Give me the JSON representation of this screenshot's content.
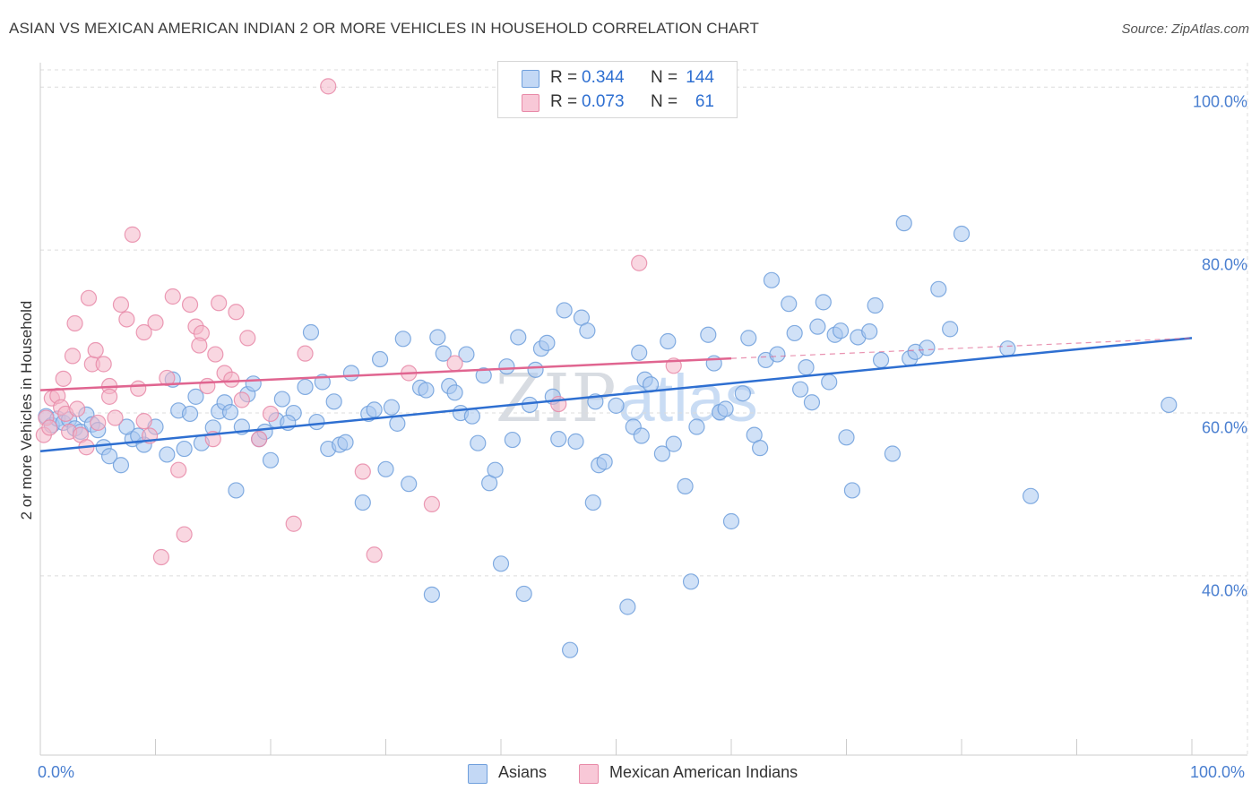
{
  "title": "ASIAN VS MEXICAN AMERICAN INDIAN 2 OR MORE VEHICLES IN HOUSEHOLD CORRELATION CHART",
  "source": "Source: ZipAtlas.com",
  "watermark": {
    "zip": "ZIP",
    "atlas": "atlas"
  },
  "colors": {
    "asian_fill": "#a9c8f0",
    "asian_stroke": "#6f9fdc",
    "asian_line": "#2e6fd1",
    "mexican_fill": "#f4b6c9",
    "mexican_stroke": "#e88aa8",
    "mexican_line": "#e06590",
    "stat_value": "#2e6fd1",
    "grid": "#dcdcdc",
    "axis": "#cccccc"
  },
  "stats": [
    {
      "series": "Asians",
      "r_label": "R =",
      "r_value": "0.344",
      "n_label": "N =",
      "n_value": "144"
    },
    {
      "series": "Mexican American Indians",
      "r_label": "R =",
      "r_value": "0.073",
      "n_label": "N =",
      "n_value": "61"
    }
  ],
  "legend": [
    {
      "label": "Asians",
      "icon": "blue-square"
    },
    {
      "label": "Mexican American Indians",
      "icon": "pink-square"
    }
  ],
  "chart_data": {
    "type": "scatter",
    "title": "ASIAN VS MEXICAN AMERICAN INDIAN 2 OR MORE VEHICLES IN HOUSEHOLD CORRELATION CHART",
    "xlabel": "",
    "ylabel": "2 or more Vehicles in Household",
    "xlim": [
      0,
      100
    ],
    "ylim": [
      18,
      103
    ],
    "x_ticks": [
      "0.0%",
      "100.0%"
    ],
    "y_ticks": [
      {
        "value": 100,
        "label": "100.0%"
      },
      {
        "value": 80,
        "label": "80.0%"
      },
      {
        "value": 60,
        "label": "60.0%"
      },
      {
        "value": 40,
        "label": "40.0%"
      }
    ],
    "grid": true,
    "legend_position": "bottom-center",
    "series": [
      {
        "name": "Asians",
        "trend": {
          "x": [
            0,
            100
          ],
          "y": [
            55.3,
            69.2
          ]
        },
        "points": [
          [
            0.5,
            59.6
          ],
          [
            1,
            58.5
          ],
          [
            1.5,
            59.3
          ],
          [
            2,
            58.8
          ],
          [
            2.5,
            59.2
          ],
          [
            3,
            58.1
          ],
          [
            3.5,
            57.7
          ],
          [
            4,
            59.8
          ],
          [
            4.5,
            58.6
          ],
          [
            5,
            57.9
          ],
          [
            5.5,
            55.8
          ],
          [
            6,
            54.7
          ],
          [
            7,
            53.6
          ],
          [
            8,
            56.8
          ],
          [
            9,
            56.1
          ],
          [
            10,
            58.3
          ],
          [
            11,
            54.9
          ],
          [
            11.5,
            64.1
          ],
          [
            12,
            60.3
          ],
          [
            13,
            59.9
          ],
          [
            13.5,
            62.0
          ],
          [
            14,
            56.3
          ],
          [
            15,
            58.2
          ],
          [
            15.5,
            60.2
          ],
          [
            16,
            61.3
          ],
          [
            17,
            50.5
          ],
          [
            17.5,
            58.3
          ],
          [
            18,
            62.3
          ],
          [
            19,
            56.8
          ],
          [
            20,
            54.2
          ],
          [
            20.5,
            59.1
          ],
          [
            21,
            61.7
          ],
          [
            22,
            60.0
          ],
          [
            23,
            63.2
          ],
          [
            23.5,
            69.9
          ],
          [
            24,
            58.9
          ],
          [
            25,
            55.6
          ],
          [
            25.5,
            61.4
          ],
          [
            26,
            56.1
          ],
          [
            27,
            64.9
          ],
          [
            28,
            49.0
          ],
          [
            28.5,
            59.9
          ],
          [
            29,
            60.4
          ],
          [
            30,
            53.1
          ],
          [
            31,
            58.7
          ],
          [
            31.5,
            69.1
          ],
          [
            32,
            51.3
          ],
          [
            33,
            63.1
          ],
          [
            33.5,
            62.8
          ],
          [
            34,
            37.7
          ],
          [
            35,
            67.3
          ],
          [
            35.5,
            63.3
          ],
          [
            36,
            62.5
          ],
          [
            37,
            67.2
          ],
          [
            38,
            56.3
          ],
          [
            39,
            51.4
          ],
          [
            39.5,
            53.0
          ],
          [
            40,
            41.5
          ],
          [
            40.5,
            65.7
          ],
          [
            41,
            56.7
          ],
          [
            42,
            37.8
          ],
          [
            42.5,
            61.0
          ],
          [
            43,
            65.3
          ],
          [
            43.5,
            67.9
          ],
          [
            44,
            68.6
          ],
          [
            45,
            56.8
          ],
          [
            45.5,
            72.6
          ],
          [
            46,
            30.9
          ],
          [
            46.5,
            56.5
          ],
          [
            47,
            71.7
          ],
          [
            47.5,
            70.1
          ],
          [
            48,
            49.0
          ],
          [
            48.5,
            53.6
          ],
          [
            49,
            54.0
          ],
          [
            50,
            60.9
          ],
          [
            51,
            36.2
          ],
          [
            51.5,
            58.3
          ],
          [
            52,
            67.4
          ],
          [
            52.5,
            64.1
          ],
          [
            53,
            63.5
          ],
          [
            54,
            55.0
          ],
          [
            54.5,
            68.8
          ],
          [
            55,
            56.2
          ],
          [
            56,
            51.0
          ],
          [
            56.5,
            39.3
          ],
          [
            57,
            58.3
          ],
          [
            58,
            69.6
          ],
          [
            58.5,
            66.1
          ],
          [
            59,
            60.1
          ],
          [
            59.5,
            60.5
          ],
          [
            60,
            46.7
          ],
          [
            61,
            62.4
          ],
          [
            61.5,
            69.2
          ],
          [
            62,
            57.3
          ],
          [
            62.5,
            55.7
          ],
          [
            63,
            66.5
          ],
          [
            63.5,
            76.3
          ],
          [
            64,
            67.2
          ],
          [
            65,
            73.4
          ],
          [
            65.5,
            69.8
          ],
          [
            66,
            62.9
          ],
          [
            66.5,
            65.6
          ],
          [
            67,
            61.3
          ],
          [
            67.5,
            70.6
          ],
          [
            68,
            73.6
          ],
          [
            68.5,
            63.8
          ],
          [
            69,
            69.6
          ],
          [
            69.5,
            70.1
          ],
          [
            70,
            57.0
          ],
          [
            70.5,
            50.5
          ],
          [
            71,
            69.3
          ],
          [
            72,
            70.0
          ],
          [
            72.5,
            73.2
          ],
          [
            73,
            66.5
          ],
          [
            74,
            55.0
          ],
          [
            75,
            83.3
          ],
          [
            75.5,
            66.7
          ],
          [
            76,
            67.5
          ],
          [
            77,
            68.0
          ],
          [
            78,
            75.2
          ],
          [
            79,
            70.3
          ],
          [
            80,
            82.0
          ],
          [
            84,
            67.9
          ],
          [
            86,
            49.8
          ],
          [
            98,
            61.0
          ],
          [
            7.5,
            58.3
          ],
          [
            8.5,
            57.2
          ],
          [
            12.5,
            55.6
          ],
          [
            16.5,
            60.1
          ],
          [
            18.5,
            63.6
          ],
          [
            19.5,
            57.7
          ],
          [
            21.5,
            58.8
          ],
          [
            24.5,
            63.8
          ],
          [
            26.5,
            56.4
          ],
          [
            29.5,
            66.6
          ],
          [
            30.5,
            60.7
          ],
          [
            34.5,
            69.3
          ],
          [
            36.5,
            60.0
          ],
          [
            37.5,
            59.6
          ],
          [
            38.5,
            64.6
          ],
          [
            41.5,
            69.3
          ],
          [
            44.5,
            62.0
          ],
          [
            48.2,
            61.4
          ],
          [
            52.2,
            57.2
          ]
        ]
      },
      {
        "name": "Mexican American Indians",
        "trend": {
          "x": [
            0,
            60
          ],
          "y": [
            62.8,
            66.7
          ]
        },
        "trend_extension": {
          "x": [
            60,
            100
          ],
          "y": [
            66.7,
            69.2
          ]
        },
        "points": [
          [
            0.3,
            57.3
          ],
          [
            0.5,
            59.4
          ],
          [
            0.8,
            58.2
          ],
          [
            1,
            61.8
          ],
          [
            1.5,
            62.1
          ],
          [
            1.8,
            60.7
          ],
          [
            2,
            64.2
          ],
          [
            2.2,
            59.9
          ],
          [
            2.5,
            57.7
          ],
          [
            2.8,
            67.0
          ],
          [
            3,
            71.0
          ],
          [
            3.5,
            57.3
          ],
          [
            4,
            55.8
          ],
          [
            4.2,
            74.1
          ],
          [
            4.5,
            66.0
          ],
          [
            4.8,
            67.7
          ],
          [
            5,
            58.8
          ],
          [
            5.5,
            66.0
          ],
          [
            6,
            63.3
          ],
          [
            6.5,
            59.4
          ],
          [
            7,
            73.3
          ],
          [
            7.5,
            71.5
          ],
          [
            8,
            81.9
          ],
          [
            8.5,
            63.0
          ],
          [
            9,
            69.9
          ],
          [
            9.5,
            57.2
          ],
          [
            10,
            71.1
          ],
          [
            10.5,
            42.3
          ],
          [
            11,
            64.3
          ],
          [
            11.5,
            74.3
          ],
          [
            12,
            53.0
          ],
          [
            12.5,
            45.1
          ],
          [
            13,
            73.3
          ],
          [
            13.5,
            70.6
          ],
          [
            14,
            69.8
          ],
          [
            14.5,
            63.3
          ],
          [
            15,
            56.8
          ],
          [
            15.5,
            73.5
          ],
          [
            16,
            64.9
          ],
          [
            17,
            72.4
          ],
          [
            17.5,
            61.6
          ],
          [
            18,
            69.2
          ],
          [
            20,
            59.9
          ],
          [
            22,
            46.4
          ],
          [
            23,
            67.3
          ],
          [
            25,
            100.1
          ],
          [
            28,
            52.8
          ],
          [
            29,
            42.6
          ],
          [
            32,
            64.9
          ],
          [
            34,
            48.8
          ],
          [
            36,
            66.1
          ],
          [
            45,
            61.1
          ],
          [
            52,
            78.4
          ],
          [
            55,
            65.8
          ],
          [
            6,
            62.0
          ],
          [
            9,
            59.0
          ],
          [
            13.8,
            68.3
          ],
          [
            15.2,
            67.2
          ],
          [
            16.6,
            64.1
          ],
          [
            19,
            56.8
          ],
          [
            3.2,
            60.5
          ]
        ]
      }
    ]
  }
}
